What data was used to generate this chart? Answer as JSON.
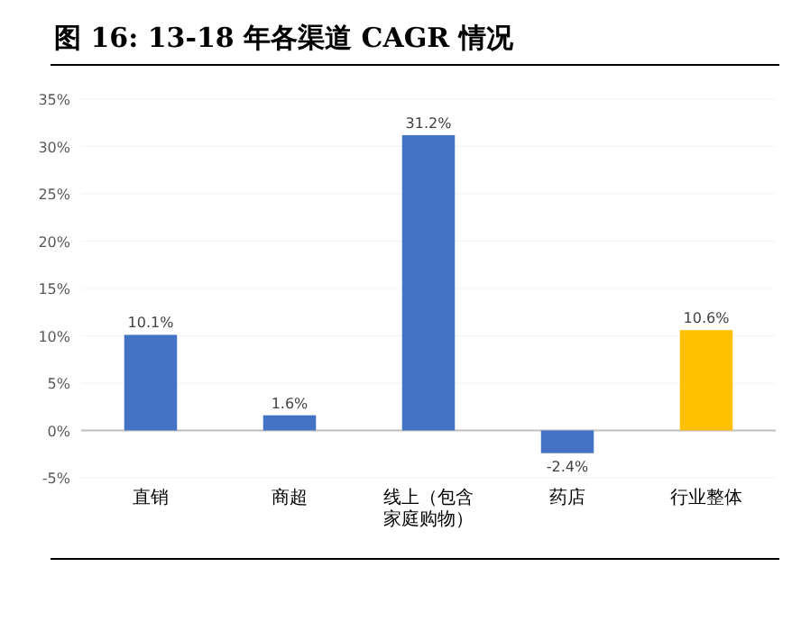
{
  "chart_data": {
    "type": "bar",
    "title": "图 16:  13-18 年各渠道 CAGR 情况",
    "categories": [
      "直销",
      "商超",
      "线上（包含家庭购物）",
      "药店",
      "行业整体"
    ],
    "values": [
      10.1,
      1.6,
      31.2,
      -2.4,
      10.6
    ],
    "colors": [
      "#4472c4",
      "#4472c4",
      "#4472c4",
      "#4472c4",
      "#ffc000"
    ],
    "value_labels": [
      "10.1%",
      "1.6%",
      "31.2%",
      "-2.4%",
      "10.6%"
    ],
    "ylim": [
      -5,
      35
    ],
    "yticks": [
      {
        "value": -5,
        "label": "-5%"
      },
      {
        "value": 0,
        "label": "0%"
      },
      {
        "value": 5,
        "label": "5%"
      },
      {
        "value": 10,
        "label": "10%"
      },
      {
        "value": 15,
        "label": "15%"
      },
      {
        "value": 20,
        "label": "20%"
      },
      {
        "value": 25,
        "label": "25%"
      },
      {
        "value": 30,
        "label": "30%"
      },
      {
        "value": 35,
        "label": "35%"
      }
    ],
    "grid": "y"
  }
}
